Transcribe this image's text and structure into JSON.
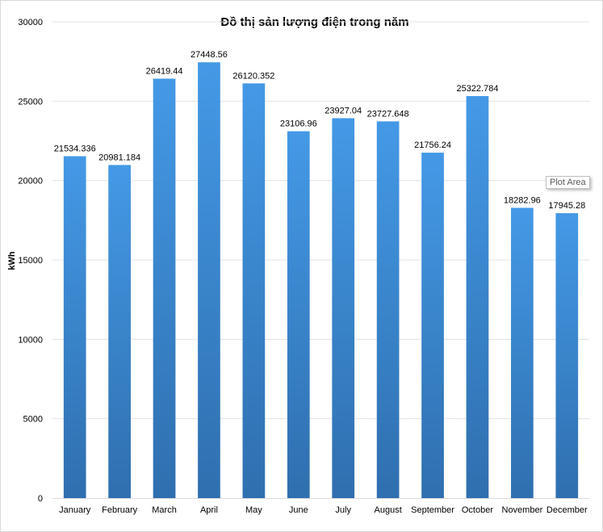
{
  "chart_data": {
    "type": "bar",
    "title": "Đồ thị sản lượng điện trong năm",
    "xlabel": "",
    "ylabel": "kWh",
    "categories": [
      "January",
      "February",
      "March",
      "April",
      "May",
      "June",
      "July",
      "August",
      "September",
      "October",
      "November",
      "December"
    ],
    "values": [
      21534.336,
      20981.184,
      26419.44,
      27448.56,
      26120.352,
      23106.96,
      23927.04,
      23727.648,
      21756.24,
      25322.784,
      18282.96,
      17945.28
    ],
    "data_labels": [
      "21534.336",
      "20981.184",
      "26419.44",
      "27448.56",
      "26120.352",
      "23106.96",
      "23927.04",
      "23727.648",
      "21756.24",
      "25322.784",
      "18282.96",
      "17945.28"
    ],
    "ylim": [
      0,
      30000
    ],
    "yticks": [
      "0",
      "5000",
      "10000",
      "15000",
      "20000",
      "25000",
      "30000"
    ],
    "grid": true,
    "legend": "none",
    "bar_color_top": "#4499e6",
    "bar_color_bottom": "#2f6faf"
  },
  "tooltip": {
    "text": "Plot Area"
  }
}
